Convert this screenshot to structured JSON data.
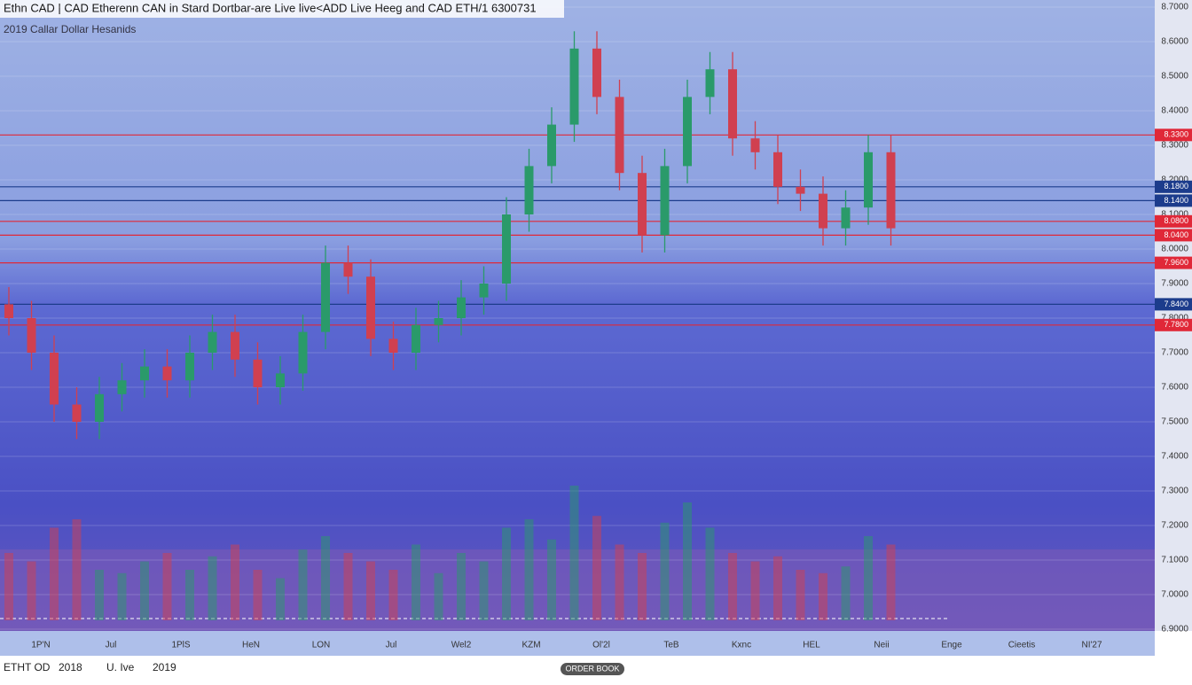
{
  "chart_data": {
    "type": "candlestick",
    "title": "Ethn CAD | CAD Etherenn CAN in Stard Dortbar-are Live live<ADD Live Heeg and CAD ETH/1 6300731",
    "subtitle": "2019 Callar Dollar Hesanids",
    "opens": [
      7.84,
      7.8,
      7.7,
      7.55,
      7.5,
      7.58,
      7.62,
      7.66,
      7.62,
      7.7,
      7.76,
      7.68,
      7.6,
      7.64,
      7.76,
      7.96,
      7.92,
      7.74,
      7.7,
      7.78,
      7.8,
      7.86,
      7.9,
      8.1,
      8.24,
      8.36,
      8.58,
      8.44,
      8.22,
      8.04,
      8.24,
      8.44,
      8.52,
      8.32,
      8.28,
      8.18,
      8.16,
      8.06,
      8.12,
      8.28
    ],
    "highs": [
      7.89,
      7.85,
      7.75,
      7.6,
      7.63,
      7.67,
      7.71,
      7.71,
      7.75,
      7.81,
      7.81,
      7.73,
      7.69,
      7.81,
      8.01,
      8.01,
      7.97,
      7.79,
      7.83,
      7.85,
      7.91,
      7.95,
      8.15,
      8.29,
      8.41,
      8.63,
      8.63,
      8.49,
      8.27,
      8.29,
      8.49,
      8.57,
      8.57,
      8.37,
      8.33,
      8.23,
      8.21,
      8.17,
      8.33,
      8.33
    ],
    "lows": [
      7.75,
      7.65,
      7.5,
      7.45,
      7.45,
      7.53,
      7.57,
      7.57,
      7.57,
      7.65,
      7.63,
      7.55,
      7.55,
      7.59,
      7.71,
      7.87,
      7.69,
      7.65,
      7.65,
      7.73,
      7.75,
      7.81,
      7.85,
      8.05,
      8.19,
      8.31,
      8.39,
      8.17,
      7.99,
      7.99,
      8.19,
      8.39,
      8.27,
      8.23,
      8.13,
      8.11,
      8.01,
      8.01,
      8.07,
      8.01
    ],
    "closes": [
      7.8,
      7.7,
      7.55,
      7.5,
      7.58,
      7.62,
      7.66,
      7.62,
      7.7,
      7.76,
      7.68,
      7.6,
      7.64,
      7.76,
      7.96,
      7.92,
      7.74,
      7.7,
      7.78,
      7.8,
      7.86,
      7.9,
      8.1,
      8.24,
      8.36,
      8.58,
      8.44,
      8.22,
      8.04,
      8.24,
      8.44,
      8.52,
      8.32,
      8.28,
      8.18,
      8.16,
      8.06,
      8.12,
      8.28,
      8.06
    ],
    "volumes": [
      40,
      35,
      55,
      60,
      30,
      28,
      35,
      40,
      30,
      38,
      45,
      30,
      25,
      42,
      50,
      40,
      35,
      30,
      45,
      28,
      40,
      35,
      55,
      60,
      48,
      80,
      62,
      45,
      40,
      58,
      70,
      55,
      40,
      35,
      38,
      30,
      28,
      32,
      50,
      45
    ],
    "vlim": [
      0,
      100
    ],
    "up_color": "#2a9a6a",
    "down_color": "#d04050",
    "ylim": [
      6.9,
      8.7
    ],
    "yticks": [
      {
        "value": 8.7,
        "label": "8.7000"
      },
      {
        "value": 8.6,
        "label": "8.6000"
      },
      {
        "value": 8.5,
        "label": "8.5000"
      },
      {
        "value": 8.4,
        "label": "8.4000"
      },
      {
        "value": 8.3,
        "label": "8.3000"
      },
      {
        "value": 8.2,
        "label": "8.2000"
      },
      {
        "value": 8.1,
        "label": "8.1000"
      },
      {
        "value": 8.0,
        "label": "8.0000"
      },
      {
        "value": 7.9,
        "label": "7.9000"
      },
      {
        "value": 7.8,
        "label": "7.8000"
      },
      {
        "value": 7.7,
        "label": "7.7000"
      },
      {
        "value": 7.6,
        "label": "7.6000"
      },
      {
        "value": 7.5,
        "label": "7.5000"
      },
      {
        "value": 7.4,
        "label": "7.4000"
      },
      {
        "value": 7.3,
        "label": "7.3000"
      },
      {
        "value": 7.2,
        "label": "7.2000"
      },
      {
        "value": 7.1,
        "label": "7.1000"
      },
      {
        "value": 7.0,
        "label": "7.0000"
      },
      {
        "value": 6.9,
        "label": "6.9000"
      }
    ],
    "levels": [
      {
        "value": 8.33,
        "label": "8.3300",
        "color": "#e02838"
      },
      {
        "value": 8.18,
        "label": "8.1800",
        "color": "#1c3c8c"
      },
      {
        "value": 8.14,
        "label": "8.1400",
        "color": "#1c3c8c"
      },
      {
        "value": 8.08,
        "label": "8.0800",
        "color": "#e02838"
      },
      {
        "value": 8.04,
        "label": "8.0400",
        "color": "#e02838"
      },
      {
        "value": 7.96,
        "label": "7.9600",
        "color": "#e02838"
      },
      {
        "value": 7.84,
        "label": "7.8400",
        "color": "#1c3c8c"
      },
      {
        "value": 7.78,
        "label": "7.7800",
        "color": "#e02838"
      }
    ],
    "xlabels": [
      "1P'N",
      "Jul",
      "1PlS",
      "HeN",
      "LON",
      "Jul",
      "Wel2",
      "KZM",
      "Ol'2l",
      "TeB",
      "Kxnc",
      "HEL",
      "Neii",
      "Enge",
      "Cieetis",
      "NI'27"
    ],
    "footer": [
      "ETHT OD",
      "2018",
      "U. Ive",
      "2019"
    ],
    "button": "ORDER BOOK"
  }
}
